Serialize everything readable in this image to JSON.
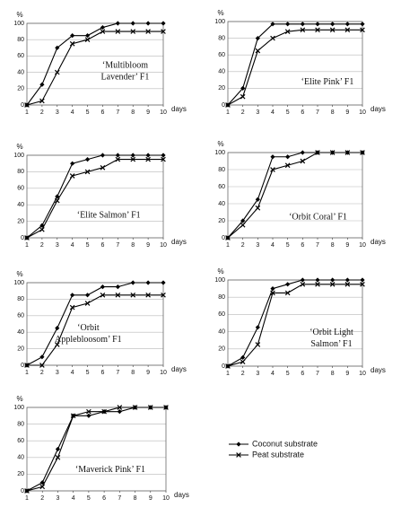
{
  "chart_data": [
    {
      "type": "line",
      "annotation": [
        "‘Multibloom",
        "Lavender’ F1"
      ],
      "y_label": "%",
      "x_label": "days",
      "x": [
        1,
        2,
        3,
        4,
        5,
        6,
        7,
        8,
        9,
        10
      ],
      "xlim": [
        1,
        10
      ],
      "xticks": [
        1,
        2,
        3,
        4,
        5,
        6,
        7,
        8,
        9,
        10
      ],
      "ylim": [
        0,
        100
      ],
      "yticks": [
        0,
        20,
        40,
        60,
        80,
        100
      ],
      "grid": true,
      "series": [
        {
          "marker": "diamond",
          "color": "#000000",
          "values": [
            0,
            25,
            70,
            85,
            85,
            95,
            100,
            100,
            100,
            100
          ]
        },
        {
          "marker": "x",
          "color": "#000000",
          "values": [
            0,
            5,
            40,
            75,
            80,
            90,
            90,
            90,
            90,
            90
          ]
        }
      ]
    },
    {
      "type": "line",
      "annotation": [
        "‘Elite Pink’ F1"
      ],
      "y_label": "%",
      "x_label": "days",
      "x": [
        1,
        2,
        3,
        4,
        5,
        6,
        7,
        8,
        9,
        10
      ],
      "xlim": [
        1,
        10
      ],
      "xticks": [
        1,
        2,
        3,
        4,
        5,
        6,
        7,
        8,
        9,
        10
      ],
      "ylim": [
        0,
        100
      ],
      "yticks": [
        0,
        20,
        40,
        60,
        80,
        100
      ],
      "grid": true,
      "series": [
        {
          "marker": "diamond",
          "color": "#000000",
          "values": [
            0,
            20,
            80,
            97,
            97,
            97,
            97,
            97,
            97,
            97
          ]
        },
        {
          "marker": "x",
          "color": "#000000",
          "values": [
            0,
            10,
            65,
            80,
            88,
            90,
            90,
            90,
            90,
            90
          ]
        }
      ]
    },
    {
      "type": "line",
      "annotation": [
        "‘Elite Salmon’ F1"
      ],
      "y_label": "%",
      "x_label": "days",
      "x": [
        1,
        2,
        3,
        4,
        5,
        6,
        7,
        8,
        9,
        10
      ],
      "xlim": [
        1,
        10
      ],
      "xticks": [
        1,
        2,
        3,
        4,
        5,
        6,
        7,
        8,
        9,
        10
      ],
      "ylim": [
        0,
        100
      ],
      "yticks": [
        0,
        20,
        40,
        60,
        80,
        100
      ],
      "grid": true,
      "series": [
        {
          "marker": "diamond",
          "color": "#000000",
          "values": [
            0,
            15,
            50,
            90,
            95,
            100,
            100,
            100,
            100,
            100
          ]
        },
        {
          "marker": "x",
          "color": "#000000",
          "values": [
            0,
            10,
            45,
            75,
            80,
            85,
            95,
            95,
            95,
            95
          ]
        }
      ]
    },
    {
      "type": "line",
      "annotation": [
        "‘Orbit Coral’ F1"
      ],
      "y_label": "%",
      "x_label": "days",
      "x": [
        1,
        2,
        3,
        4,
        5,
        6,
        7,
        8,
        9,
        10
      ],
      "xlim": [
        1,
        10
      ],
      "xticks": [
        1,
        2,
        3,
        4,
        5,
        6,
        7,
        8,
        9,
        10
      ],
      "ylim": [
        0,
        100
      ],
      "yticks": [
        0,
        20,
        40,
        60,
        80,
        100
      ],
      "grid": true,
      "series": [
        {
          "marker": "diamond",
          "color": "#000000",
          "values": [
            0,
            20,
            45,
            95,
            95,
            100,
            100,
            100,
            100,
            100
          ]
        },
        {
          "marker": "x",
          "color": "#000000",
          "values": [
            0,
            15,
            35,
            80,
            85,
            90,
            100,
            100,
            100,
            100
          ]
        }
      ]
    },
    {
      "type": "line",
      "annotation": [
        "‘Orbit",
        "Applebloosom’ F1"
      ],
      "y_label": "%",
      "x_label": "days",
      "x": [
        1,
        2,
        3,
        4,
        5,
        6,
        7,
        8,
        9,
        10
      ],
      "xlim": [
        1,
        10
      ],
      "xticks": [
        1,
        2,
        3,
        4,
        5,
        6,
        7,
        8,
        9,
        10
      ],
      "ylim": [
        0,
        100
      ],
      "yticks": [
        0,
        20,
        40,
        60,
        80,
        100
      ],
      "grid": true,
      "series": [
        {
          "marker": "diamond",
          "color": "#000000",
          "values": [
            0,
            10,
            45,
            85,
            85,
            95,
            95,
            100,
            100,
            100
          ]
        },
        {
          "marker": "x",
          "color": "#000000",
          "values": [
            0,
            0,
            25,
            70,
            75,
            85,
            85,
            85,
            85,
            85
          ]
        }
      ]
    },
    {
      "type": "line",
      "annotation": [
        "‘Orbit Light",
        "Salmon’ F1"
      ],
      "y_label": "%",
      "x_label": "days",
      "x": [
        1,
        2,
        3,
        4,
        5,
        6,
        7,
        8,
        9,
        10
      ],
      "xlim": [
        1,
        10
      ],
      "xticks": [
        1,
        2,
        3,
        4,
        5,
        6,
        7,
        8,
        9,
        10
      ],
      "ylim": [
        0,
        100
      ],
      "yticks": [
        0,
        20,
        40,
        60,
        80,
        100
      ],
      "grid": true,
      "series": [
        {
          "marker": "diamond",
          "color": "#000000",
          "values": [
            0,
            10,
            45,
            90,
            95,
            100,
            100,
            100,
            100,
            100
          ]
        },
        {
          "marker": "x",
          "color": "#000000",
          "values": [
            0,
            5,
            25,
            85,
            85,
            95,
            95,
            95,
            95,
            95
          ]
        }
      ]
    },
    {
      "type": "line",
      "annotation": [
        "‘Maverick Pink’ F1"
      ],
      "y_label": "%",
      "x_label": "days",
      "x": [
        1,
        2,
        3,
        4,
        5,
        6,
        7,
        8,
        9,
        10
      ],
      "xlim": [
        1,
        10
      ],
      "xticks": [
        1,
        2,
        3,
        4,
        5,
        6,
        7,
        8,
        9,
        10
      ],
      "ylim": [
        0,
        100
      ],
      "yticks": [
        0,
        20,
        40,
        60,
        80,
        100
      ],
      "grid": true,
      "series": [
        {
          "name": "Coconut substrate",
          "marker": "diamond",
          "color": "#000000",
          "values": [
            0,
            10,
            50,
            90,
            90,
            95,
            95,
            100,
            100,
            100
          ]
        },
        {
          "name": "Peat substrate",
          "marker": "x",
          "color": "#000000",
          "values": [
            0,
            5,
            40,
            90,
            95,
            95,
            100,
            100,
            100,
            100
          ]
        }
      ]
    }
  ]
}
